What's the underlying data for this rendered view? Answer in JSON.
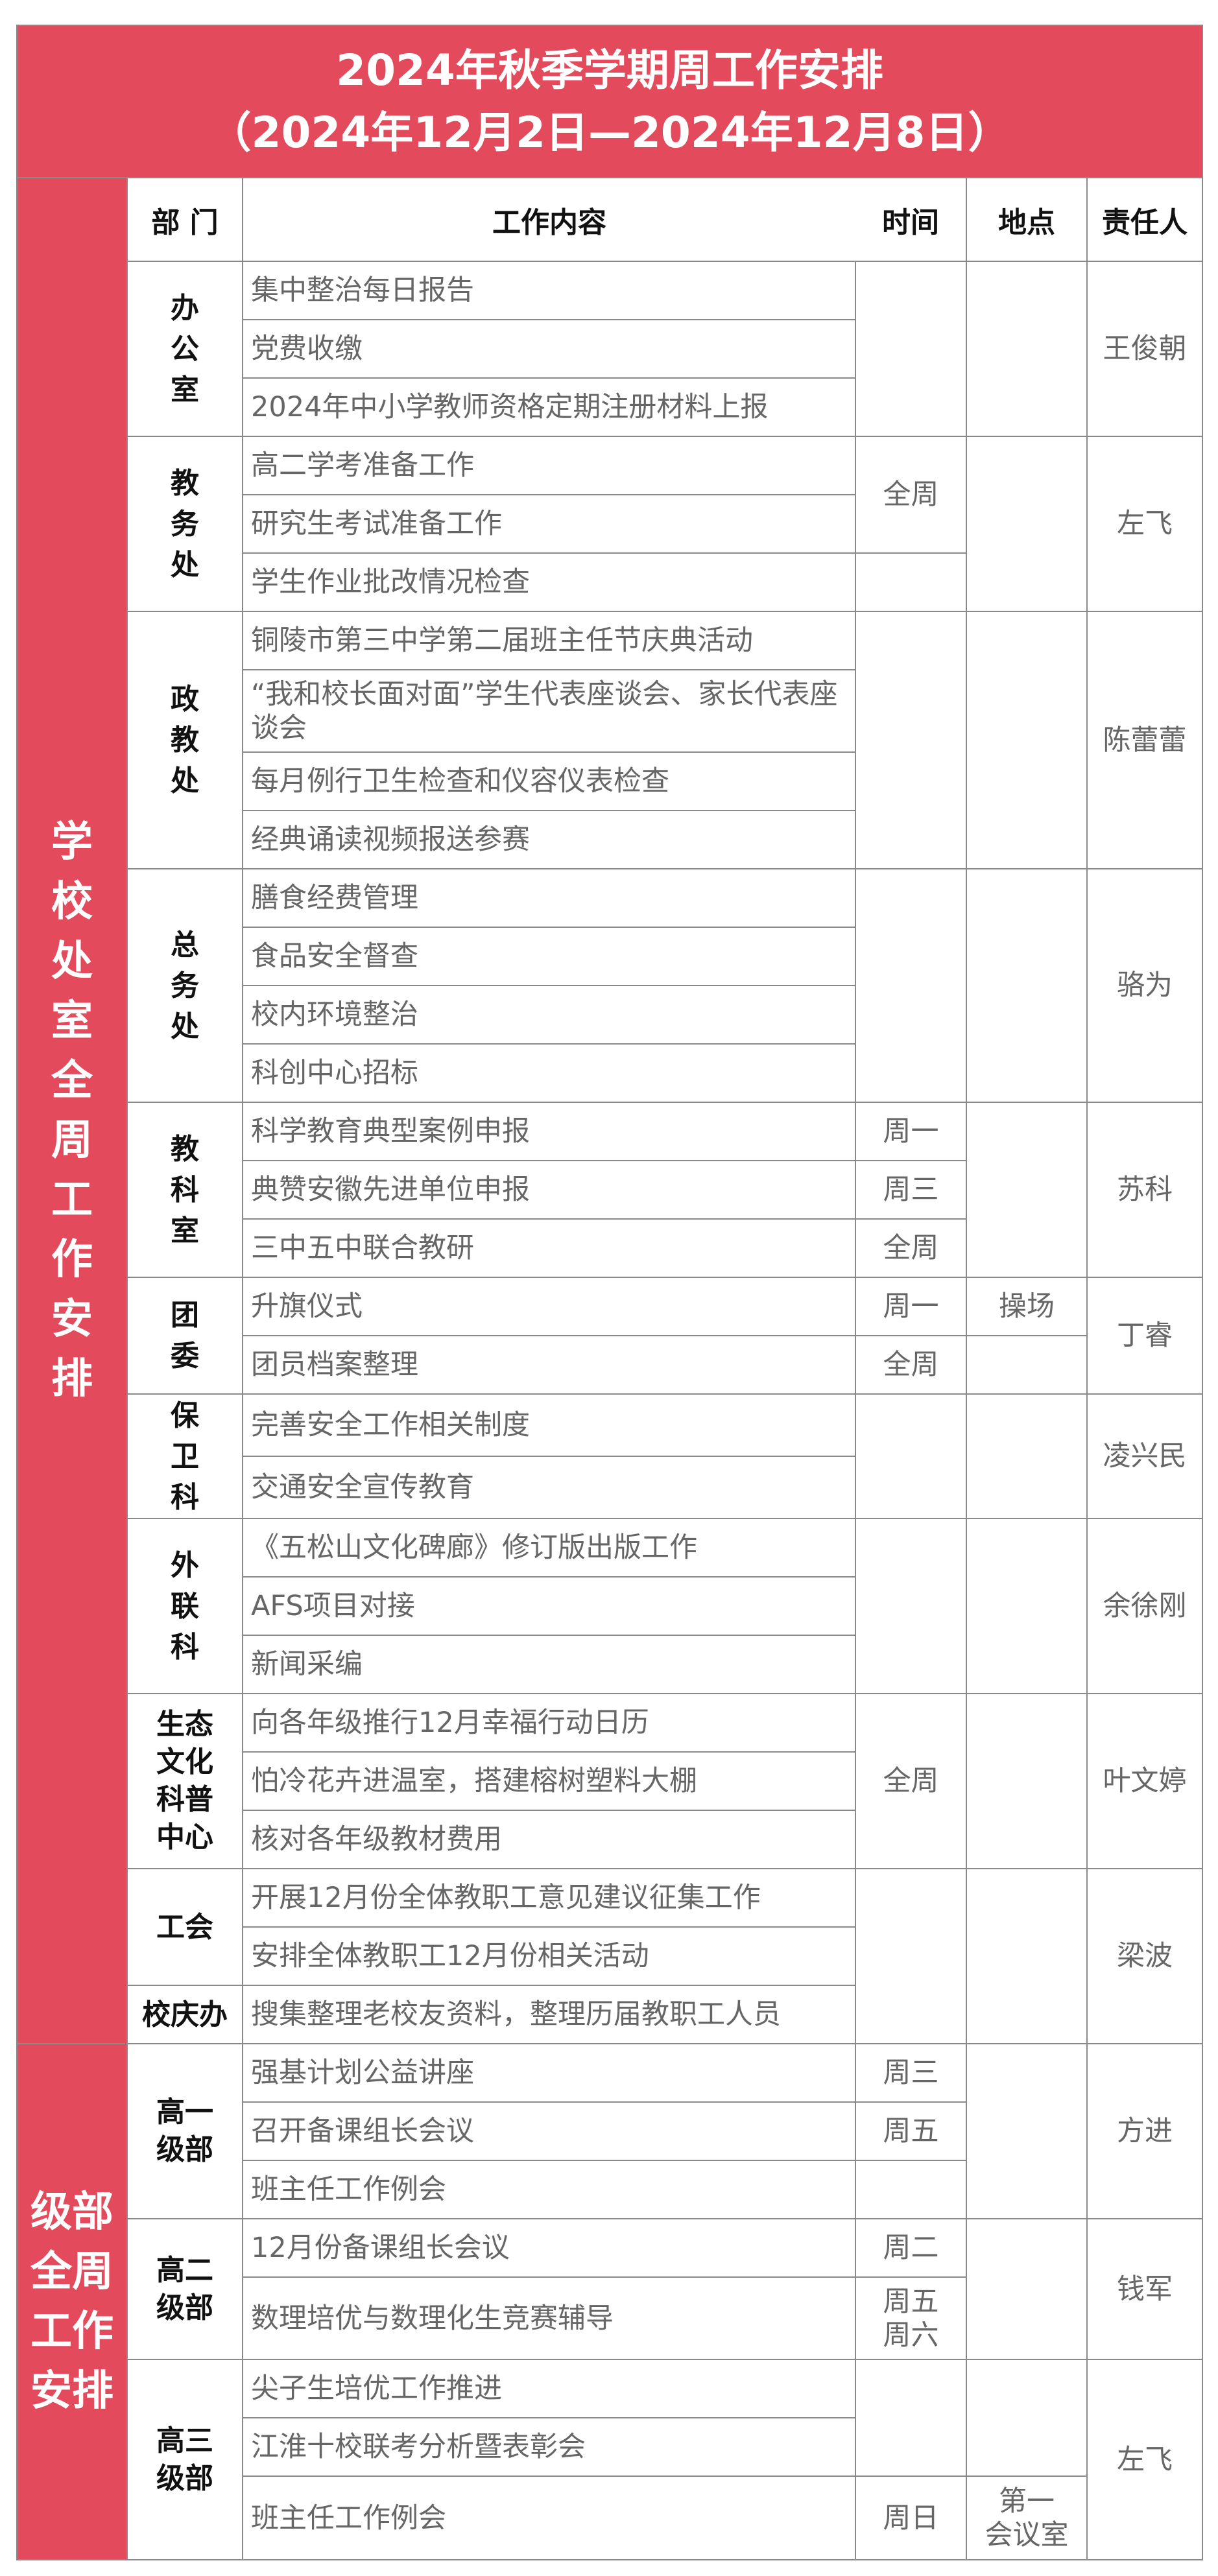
{
  "title": {
    "line1": "2024年秋季学期周工作安排",
    "line2": "（2024年12月2日—2024年12月8日）"
  },
  "header": {
    "dept": "部 门",
    "content": "工作内容",
    "time": "时间",
    "place": "地点",
    "person": "责任人"
  },
  "colors": {
    "accent": "#E34B5D",
    "text": "#666666",
    "border": "#8a8a8a"
  },
  "sections": [
    {
      "label": "学校处室全周工作安排",
      "departments": [
        {
          "name": "办公室",
          "person": "王俊朝",
          "items": [
            {
              "content": "集中整治每日报告"
            },
            {
              "content": "党费收缴"
            },
            {
              "content": "2024年中小学教师资格定期注册材料上报"
            }
          ]
        },
        {
          "name": "教务处",
          "person": "左飞",
          "items": [
            {
              "content": "高二学考准备工作",
              "time": "全周"
            },
            {
              "content": "研究生考试准备工作"
            },
            {
              "content": "学生作业批改情况检查"
            }
          ]
        },
        {
          "name": "政教处",
          "person": "陈蕾蕾",
          "items": [
            {
              "content": "铜陵市第三中学第二届班主任节庆典活动"
            },
            {
              "content": "“我和校长面对面”学生代表座谈会、家长代表座谈会"
            },
            {
              "content": "每月例行卫生检查和仪容仪表检查"
            },
            {
              "content": "经典诵读视频报送参赛"
            }
          ]
        },
        {
          "name": "总务处",
          "person": "骆为",
          "items": [
            {
              "content": "膳食经费管理"
            },
            {
              "content": "食品安全督查"
            },
            {
              "content": "校内环境整治"
            },
            {
              "content": "科创中心招标"
            }
          ]
        },
        {
          "name": "教科室",
          "person": "苏科",
          "items": [
            {
              "content": "科学教育典型案例申报",
              "time": "周一"
            },
            {
              "content": "典赞安徽先进单位申报",
              "time": "周三"
            },
            {
              "content": "三中五中联合教研",
              "time": "全周"
            }
          ]
        },
        {
          "name": "团委",
          "person": "丁睿",
          "items": [
            {
              "content": "升旗仪式",
              "time": "周一",
              "place": "操场"
            },
            {
              "content": "团员档案整理",
              "time": "全周"
            }
          ]
        },
        {
          "name": "保卫科",
          "person": "凌兴民",
          "items": [
            {
              "content": "完善安全工作相关制度"
            },
            {
              "content": "交通安全宣传教育"
            }
          ]
        },
        {
          "name": "外联科",
          "person": "余徐刚",
          "items": [
            {
              "content": "《五松山文化碑廊》修订版出版工作"
            },
            {
              "content": "AFS项目对接"
            },
            {
              "content": "新闻采编"
            }
          ]
        },
        {
          "name": "生态文化科普中心",
          "person": "叶文婷",
          "items": [
            {
              "content": "向各年级推行12月幸福行动日历",
              "time": "全周"
            },
            {
              "content": "怕冷花卉进温室，搭建榕树塑料大棚"
            },
            {
              "content": "核对各年级教材费用"
            }
          ]
        },
        {
          "name": "工会",
          "person": "梁波",
          "items": [
            {
              "content": "开展12月份全体教职工意见建议征集工作"
            },
            {
              "content": "安排全体教职工12月份相关活动"
            }
          ]
        },
        {
          "name": "校庆办",
          "items": [
            {
              "content": "搜集整理老校友资料，整理历届教职工人员"
            }
          ]
        }
      ]
    },
    {
      "label": "级部全周工作安排",
      "departments": [
        {
          "name": "高一级部",
          "person": "方进",
          "items": [
            {
              "content": "强基计划公益讲座",
              "time": "周三"
            },
            {
              "content": "召开备课组长会议",
              "time": "周五"
            },
            {
              "content": "班主任工作例会"
            }
          ]
        },
        {
          "name": "高二级部",
          "person": "钱军",
          "items": [
            {
              "content": "12月份备课组长会议",
              "time": "周二"
            },
            {
              "content": "数理培优与数理化生竞赛辅导",
              "time": "周五\n周六"
            }
          ]
        },
        {
          "name": "高三级部",
          "person": "左飞",
          "items": [
            {
              "content": "尖子生培优工作推进"
            },
            {
              "content": "江淮十校联考分析暨表彰会"
            },
            {
              "content": "班主任工作例会",
              "time": "周日",
              "place": "第一\n会议室"
            }
          ]
        }
      ]
    }
  ]
}
